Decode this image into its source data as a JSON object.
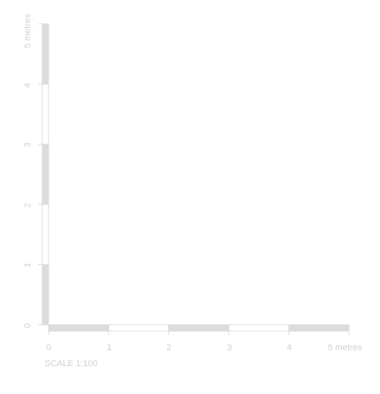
{
  "scale_bar": {
    "unit": "metres",
    "ratio_label": "SCALE 1:100",
    "horizontal": {
      "ticks": [
        "0",
        "1",
        "2",
        "3",
        "4",
        "5 metres"
      ]
    },
    "vertical": {
      "ticks": [
        "0",
        "1",
        "2",
        "3",
        "4",
        "5 metres"
      ]
    },
    "segment_count": 5,
    "colors": {
      "filled": "#dcdcdc",
      "empty": "#ffffff",
      "outline": "#dcdcdc",
      "text": "#d0d0d0"
    }
  }
}
